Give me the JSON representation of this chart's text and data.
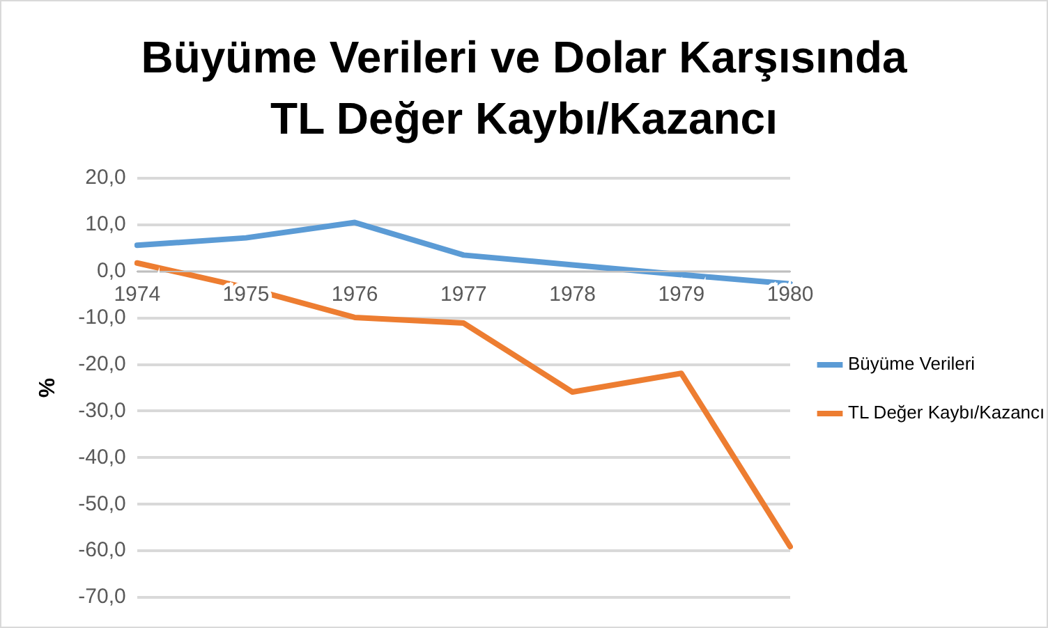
{
  "chart_data": {
    "type": "line",
    "title": "Büyüme Verileri ve Dolar Karşısında TL Değer Kaybı/Kazancı",
    "ylabel": "%",
    "categories": [
      "1974",
      "1975",
      "1976",
      "1977",
      "1978",
      "1979",
      "1980"
    ],
    "series": [
      {
        "name": "Büyüme Verileri",
        "color": "#5b9bd5",
        "values": [
          5.6,
          7.2,
          10.5,
          3.5,
          1.4,
          -0.7,
          -2.7
        ]
      },
      {
        "name": "TL Değer Kaybı/Kazancı",
        "color": "#ed7d31",
        "values": [
          1.8,
          -3.5,
          -9.9,
          -11.1,
          -25.9,
          -21.9,
          -59.1
        ]
      }
    ],
    "ylim": [
      -70,
      20
    ],
    "yticks": [
      {
        "value": 20,
        "label": "20,0"
      },
      {
        "value": 10,
        "label": "10,0"
      },
      {
        "value": 0,
        "label": "0,0"
      },
      {
        "value": -10,
        "label": "-10,0"
      },
      {
        "value": -20,
        "label": "-20,0"
      },
      {
        "value": -30,
        "label": "-30,0"
      },
      {
        "value": -40,
        "label": "-40,0"
      },
      {
        "value": -50,
        "label": "-50,0"
      },
      {
        "value": -60,
        "label": "-60,0"
      },
      {
        "value": -70,
        "label": "-70,0"
      }
    ],
    "grid": "y",
    "legend": "right",
    "marker": "none",
    "line_style": "solid"
  }
}
